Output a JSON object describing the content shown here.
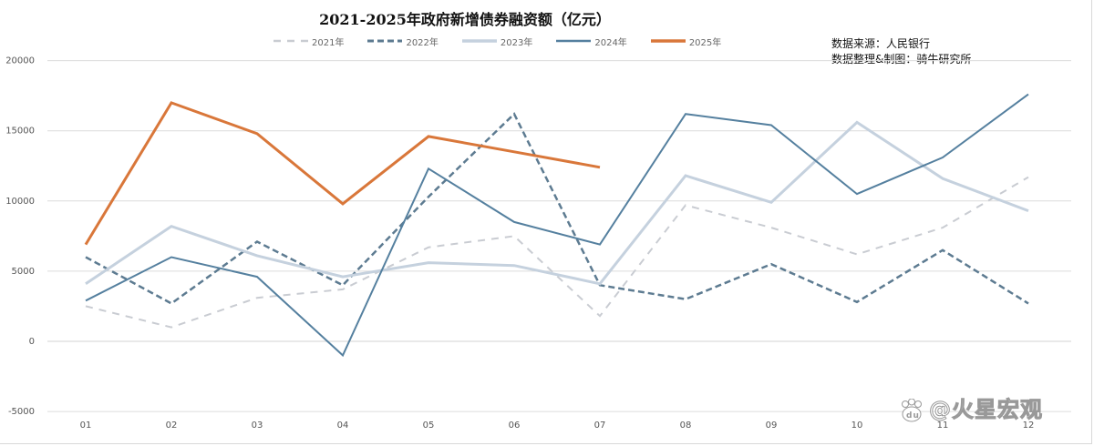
{
  "title": "2021-2025年政府新增债券融资额（亿元）",
  "source": {
    "line1": "数据来源：人民银行",
    "line2": "数据整理&制图：骑牛研究所"
  },
  "watermark": "@火星宏观",
  "colors": {
    "s2021": "#c9ccd2",
    "s2022": "#5d7b91",
    "s2023": "#c5d1de",
    "s2024": "#55809f",
    "s2025": "#d9773a",
    "grid": "#dcdcdc"
  },
  "chart_data": {
    "type": "line",
    "title": "2021-2025年政府新增债券融资额（亿元）",
    "xlabel": "",
    "ylabel": "",
    "categories": [
      "01",
      "02",
      "03",
      "04",
      "05",
      "06",
      "07",
      "08",
      "09",
      "10",
      "11",
      "12"
    ],
    "yticks": [
      20000,
      15000,
      10000,
      5000,
      0,
      -5000
    ],
    "ylim": [
      -5000,
      20000
    ],
    "grid": true,
    "legend_position": "top",
    "series": [
      {
        "name": "2021年",
        "style": "dashed",
        "values": [
          2500,
          1000,
          3100,
          3700,
          6700,
          7500,
          1800,
          9700,
          8100,
          6200,
          8100,
          11700
        ]
      },
      {
        "name": "2022年",
        "style": "dashed",
        "values": [
          6000,
          2700,
          7100,
          4000,
          10300,
          16200,
          4000,
          3000,
          5500,
          2800,
          6500,
          2700
        ]
      },
      {
        "name": "2023年",
        "style": "solid",
        "values": [
          4100,
          8200,
          6100,
          4600,
          5600,
          5400,
          4100,
          11800,
          9900,
          15600,
          11600,
          9300
        ]
      },
      {
        "name": "2024年",
        "style": "solid",
        "values": [
          2900,
          6000,
          4600,
          -1000,
          12300,
          8500,
          6900,
          16200,
          15400,
          10500,
          13100,
          17600
        ]
      },
      {
        "name": "2025年",
        "style": "solid",
        "values": [
          6900,
          17000,
          14800,
          9800,
          14600,
          13500,
          12400
        ]
      }
    ]
  }
}
